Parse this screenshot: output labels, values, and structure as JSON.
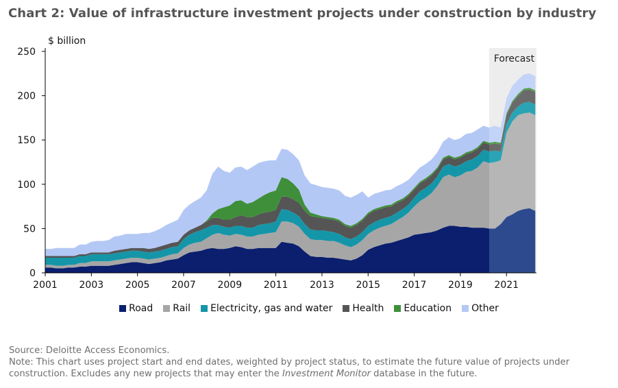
{
  "header": {
    "title": "Chart 2: Value of infrastructure investment projects under construction by industry"
  },
  "chart_data": {
    "type": "area",
    "stacked": true,
    "ylabel": "$ billion",
    "ylim": [
      0,
      250
    ],
    "yticks": [
      0,
      50,
      100,
      150,
      200,
      250
    ],
    "xlim": [
      2001,
      2022.3
    ],
    "xticks": [
      "2001",
      "2003",
      "2005",
      "2007",
      "2009",
      "2011",
      "2013",
      "2015",
      "2017",
      "2019",
      "2021"
    ],
    "forecast": {
      "label": "Forecast",
      "start": 2020.25,
      "end": 2022.3
    },
    "x": [
      2001,
      2001.25,
      2001.5,
      2001.75,
      2002,
      2002.25,
      2002.5,
      2002.75,
      2003,
      2003.25,
      2003.5,
      2003.75,
      2004,
      2004.25,
      2004.5,
      2004.75,
      2005,
      2005.25,
      2005.5,
      2005.75,
      2006,
      2006.25,
      2006.5,
      2006.75,
      2007,
      2007.25,
      2007.5,
      2007.75,
      2008,
      2008.25,
      2008.5,
      2008.75,
      2009,
      2009.25,
      2009.5,
      2009.75,
      2010,
      2010.25,
      2010.5,
      2010.75,
      2011,
      2011.25,
      2011.5,
      2011.75,
      2012,
      2012.25,
      2012.5,
      2012.75,
      2013,
      2013.25,
      2013.5,
      2013.75,
      2014,
      2014.25,
      2014.5,
      2014.75,
      2015,
      2015.25,
      2015.5,
      2015.75,
      2016,
      2016.25,
      2016.5,
      2016.75,
      2017,
      2017.25,
      2017.5,
      2017.75,
      2018,
      2018.25,
      2018.5,
      2018.75,
      2019,
      2019.25,
      2019.5,
      2019.75,
      2020,
      2020.25,
      2020.5,
      2020.75,
      2021,
      2021.25,
      2021.5,
      2021.75,
      2022,
      2022.25
    ],
    "series": [
      {
        "name": "Road",
        "color": "#0b1f6e",
        "forecast_color": "#2e4a8e",
        "values": [
          6,
          6,
          5,
          5,
          6,
          6,
          7,
          7,
          8,
          8,
          8,
          8,
          9,
          10,
          11,
          12,
          12,
          11,
          10,
          11,
          12,
          14,
          15,
          16,
          20,
          23,
          24,
          25,
          27,
          28,
          27,
          27,
          28,
          30,
          29,
          27,
          27,
          28,
          28,
          28,
          28,
          35,
          34,
          33,
          30,
          24,
          19,
          18,
          18,
          17,
          17,
          16,
          15,
          14,
          16,
          20,
          26,
          29,
          31,
          33,
          34,
          36,
          38,
          40,
          43,
          44,
          45,
          46,
          48,
          51,
          53,
          53,
          52,
          52,
          51,
          51,
          51,
          50,
          50,
          55,
          63,
          66,
          70,
          72,
          73,
          70
        ]
      },
      {
        "name": "Rail",
        "color": "#a6a6a6",
        "forecast_color": "#b6b6b6",
        "values": [
          3,
          3,
          3,
          3,
          3,
          3,
          4,
          4,
          5,
          5,
          5,
          5,
          5,
          5,
          5,
          5,
          5,
          5,
          5,
          5,
          5,
          5,
          6,
          6,
          8,
          9,
          10,
          10,
          12,
          15,
          18,
          16,
          14,
          14,
          14,
          14,
          14,
          15,
          16,
          17,
          18,
          23,
          24,
          23,
          22,
          20,
          19,
          19,
          19,
          19,
          19,
          18,
          16,
          15,
          16,
          17,
          18,
          19,
          20,
          20,
          21,
          23,
          25,
          28,
          32,
          37,
          40,
          44,
          50,
          57,
          58,
          55,
          58,
          62,
          64,
          68,
          75,
          74,
          75,
          72,
          95,
          105,
          108,
          108,
          108,
          108
        ]
      },
      {
        "name": "Electricity, gas and water",
        "color": "#1596a8",
        "forecast_color": "#2aa4b4",
        "values": [
          8,
          8,
          9,
          9,
          8,
          8,
          8,
          8,
          8,
          8,
          8,
          8,
          8,
          8,
          8,
          8,
          8,
          8,
          8,
          8,
          8,
          8,
          8,
          8,
          10,
          11,
          12,
          13,
          12,
          11,
          9,
          9,
          9,
          9,
          10,
          10,
          10,
          11,
          11,
          11,
          12,
          14,
          13,
          12,
          12,
          11,
          11,
          11,
          11,
          11,
          10,
          10,
          9,
          9,
          9,
          9,
          9,
          9,
          9,
          9,
          9,
          9,
          9,
          9,
          10,
          11,
          11,
          11,
          11,
          12,
          12,
          12,
          12,
          12,
          13,
          13,
          13,
          13,
          13,
          10,
          10,
          10,
          10,
          12,
          12,
          12
        ]
      },
      {
        "name": "Health",
        "color": "#555555",
        "forecast_color": "#6a6a6a",
        "values": [
          2,
          2,
          2,
          2,
          2,
          2,
          2,
          2,
          2,
          2,
          2,
          2,
          3,
          3,
          3,
          3,
          3,
          4,
          4,
          4,
          5,
          5,
          5,
          5,
          5,
          5,
          5,
          6,
          7,
          8,
          8,
          8,
          9,
          10,
          12,
          12,
          12,
          12,
          13,
          13,
          13,
          14,
          15,
          15,
          15,
          15,
          15,
          15,
          14,
          14,
          14,
          14,
          13,
          13,
          13,
          13,
          13,
          13,
          12,
          12,
          11,
          11,
          10,
          10,
          9,
          9,
          9,
          9,
          8,
          8,
          8,
          8,
          8,
          8,
          8,
          8,
          8,
          8,
          8,
          8,
          10,
          11,
          12,
          14,
          14,
          14
        ]
      },
      {
        "name": "Education",
        "color": "#3f8f3a",
        "forecast_color": "#55a14f",
        "values": [
          0,
          0,
          0,
          0,
          0,
          0,
          0,
          0,
          0,
          0,
          0,
          0,
          0,
          0,
          0,
          0,
          0,
          0,
          0,
          0,
          0,
          0,
          0,
          0,
          0,
          0,
          0,
          0,
          1,
          5,
          10,
          14,
          16,
          18,
          17,
          15,
          17,
          18,
          20,
          22,
          22,
          22,
          20,
          18,
          15,
          7,
          4,
          3,
          2,
          2,
          2,
          2,
          2,
          2,
          2,
          2,
          2,
          2,
          2,
          2,
          2,
          2,
          2,
          2,
          2,
          2,
          2,
          2,
          2,
          2,
          2,
          2,
          2,
          2,
          2,
          2,
          2,
          2,
          2,
          2,
          2,
          2,
          2,
          2,
          2,
          2
        ]
      },
      {
        "name": "Other",
        "color": "#b4c8f5",
        "forecast_color": "#c4d4f8",
        "values": [
          8,
          8,
          9,
          9,
          9,
          9,
          11,
          11,
          12,
          13,
          13,
          14,
          16,
          16,
          17,
          16,
          16,
          17,
          18,
          19,
          20,
          22,
          23,
          25,
          28,
          29,
          30,
          31,
          34,
          45,
          48,
          41,
          37,
          38,
          38,
          38,
          40,
          40,
          38,
          36,
          34,
          32,
          33,
          33,
          33,
          33,
          33,
          33,
          33,
          33,
          33,
          33,
          32,
          32,
          32,
          31,
          17,
          17,
          17,
          17,
          17,
          17,
          17,
          16,
          16,
          16,
          16,
          16,
          17,
          18,
          20,
          20,
          20,
          21,
          20,
          20,
          17,
          17,
          18,
          17,
          17,
          17,
          16,
          16,
          16,
          16
        ]
      }
    ]
  },
  "footer": {
    "source": "Source: Deloitte Access Economics.",
    "note_before": "Note: This chart uses project start and end dates, weighted by project status, to estimate the future value of projects under construction. Excludes any new projects that may enter the ",
    "note_italic": "Investment Monitor",
    "note_after": " database in the future."
  }
}
